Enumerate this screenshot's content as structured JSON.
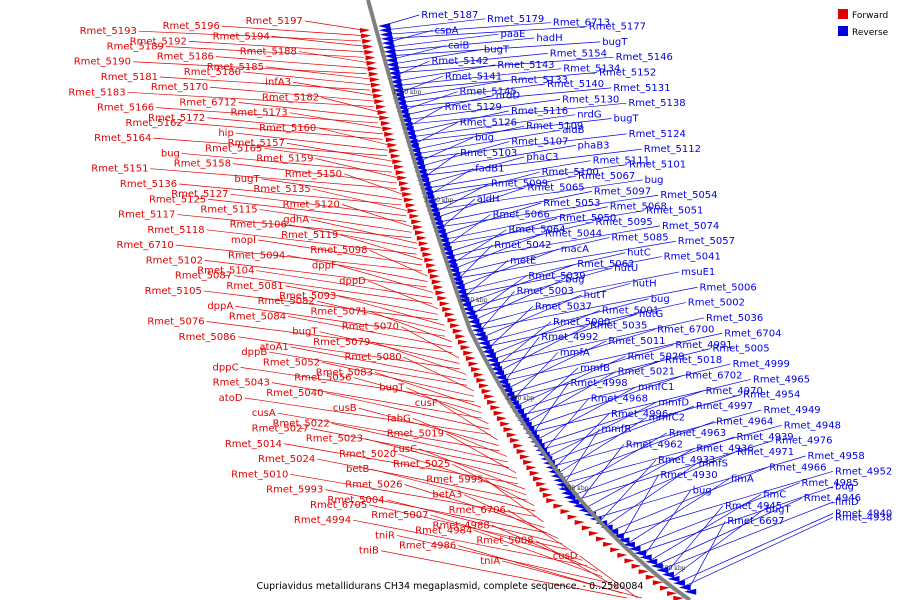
{
  "caption": "Cupriavidus metallidurans CH34 megaplasmid, complete sequence. - 0..2580084",
  "legend": {
    "forward": "Forward",
    "reverse": "Reverse"
  },
  "colors": {
    "forward": "#e00000",
    "reverse": "#0000e0",
    "backbone": "#808080",
    "link": "#cccccc"
  },
  "scale_labels": [
    "1850 kbp",
    "1800 kbp",
    "1750 kbp",
    "1700 kbp",
    "1650 kbp",
    "1600 kbp"
  ],
  "forward_genes": [
    "Rmet_5197",
    "Rmet_5196",
    "Rmet_5193",
    "Rmet_5194",
    "Rmet_5192",
    "Rmet_5189",
    "Rmet_5188",
    "Rmet_5186",
    "Rmet_5190",
    "Rmet_5185",
    "Rmet_5180",
    "Rmet_5181",
    "infA3",
    "Rmet_5170",
    "Rmet_5183",
    "Rmet_5182",
    "Rmet_6712",
    "Rmet_5166",
    "Rmet_5173",
    "Rmet_5172",
    "Rmet_5162",
    "Rmet_5160",
    "hip",
    "Rmet_5164",
    "Rmet_5157",
    "Rmet_5165",
    "bug",
    "Rmet_5159",
    "Rmet_5158",
    "Rmet_5151",
    "Rmet_5150",
    "bugT",
    "Rmet_5136",
    "Rmet_5135",
    "Rmet_5127",
    "Rmet_5125",
    "Rmet_5120",
    "Rmet_5115",
    "Rmet_5117",
    "gdhA",
    "Rmet_5106",
    "Rmet_5118",
    "Rmet_5119",
    "mopI",
    "Rmet_6710",
    "Rmet_5098",
    "Rmet_5094",
    "Rmet_5102",
    "dppF",
    "Rmet_5104",
    "Rmet_5087",
    "dppD",
    "Rmet_5081",
    "Rmet_5105",
    "Rmet_5093",
    "Rmet_5082",
    "dppA",
    "Rmet_5071",
    "Rmet_5084",
    "Rmet_5076",
    "Rmet_5070",
    "bugT",
    "Rmet_5086",
    "Rmet_5079",
    "atoA1",
    "dppB",
    "Rmet_5080",
    "Rmet_5052",
    "dppC",
    "Rmet_5083",
    "Rmet_5056",
    "Rmet_5043",
    "bugT",
    "Rmet_5040",
    "atoD",
    "cusF",
    "cusB",
    "cusA",
    "fabG",
    "Rmet_5022",
    "Rmet_5027",
    "Rmet_5019",
    "Rmet_5023",
    "Rmet_5014",
    "cusC",
    "Rmet_5020",
    "Rmet_5024",
    "Rmet_5025",
    "betB",
    "Rmet_5010",
    "Rmet_5995",
    "Rmet_5026",
    "Rmet_5993",
    "betA3",
    "Rmet_5004",
    "Rmet_6705",
    "Rmet_6706",
    "Rmet_5007",
    "Rmet_4994",
    "Rmet_4988",
    "Rmet_4984",
    "tniR",
    "Rmet_5008",
    "Rmet_4986",
    "tniB",
    "cusD",
    "tniA"
  ],
  "reverse_genes": [
    "Rmet_5187",
    "Rmet_5179",
    "Rmet_6713",
    "Rmet_5177",
    "cspA",
    "paaE",
    "hadH",
    "bugT",
    "caiB",
    "bugT",
    "Rmet_5154",
    "Rmet_5146",
    "Rmet_5142",
    "Rmet_5143",
    "Rmet_5134",
    "Rmet_5152",
    "Rmet_5141",
    "Rmet_5133",
    "Rmet_5140",
    "Rmet_5131",
    "Rmet_5145",
    "nrdD",
    "Rmet_5130",
    "Rmet_5138",
    "Rmet_5129",
    "Rmet_5116",
    "nrdG",
    "bugT",
    "Rmet_5126",
    "Rmet_5109",
    "aldB",
    "Rmet_5124",
    "bug",
    "Rmet_5107",
    "phaB3",
    "Rmet_5112",
    "Rmet_5103",
    "phaC3",
    "Rmet_5111",
    "Rmet_5101",
    "fadB1",
    "Rmet_5100",
    "Rmet_5067",
    "bug",
    "Rmet_5099",
    "Rmet_5065",
    "Rmet_5097",
    "Rmet_5054",
    "aldH",
    "Rmet_5053",
    "Rmet_5068",
    "Rmet_5051",
    "Rmet_5066",
    "Rmet_5050",
    "Rmet_5095",
    "Rmet_5074",
    "Rmet_5064",
    "Rmet_5044",
    "Rmet_5085",
    "Rmet_5057",
    "Rmet_5042",
    "macA",
    "hutC",
    "Rmet_5041",
    "metE",
    "Rmet_5062",
    "hutU",
    "msuE1",
    "Rmet_5039",
    "bug",
    "hutH",
    "Rmet_5006",
    "Rmet_5003",
    "hutT",
    "bug",
    "Rmet_5002",
    "Rmet_5037",
    "Rmet_5001",
    "hutG",
    "Rmet_5036",
    "Rmet_5000",
    "Rmet_5035",
    "Rmet_6700",
    "Rmet_6704",
    "Rmet_4992",
    "Rmet_5011",
    "Rmet_4991",
    "Rmet_5005",
    "mmfA",
    "Rmet_5029",
    "Rmet_5018",
    "Rmet_4999",
    "mmfB",
    "Rmet_5021",
    "Rmet_6702",
    "Rmet_4965",
    "Rmet_4998",
    "mmfC1",
    "Rmet_4970",
    "Rmet_4954",
    "Rmet_4968",
    "mmfD",
    "Rmet_4997",
    "Rmet_4949",
    "Rmet_4996",
    "mmfC2",
    "Rmet_4964",
    "Rmet_4948",
    "mmfR",
    "Rmet_4963",
    "Rmet_4939",
    "Rmet_4976",
    "Rmet_4962",
    "Rmet_4936",
    "Rmet_4971",
    "Rmet_4958",
    "Rmet_4933",
    "mmfS",
    "Rmet_4966",
    "Rmet_4952",
    "Rmet_4930",
    "fimA",
    "Rmet_4985",
    "bug",
    "bug",
    "fimC",
    "Rmet_4946",
    "fimD",
    "Rmet_4945",
    "bugT",
    "Rmet_4940",
    "Rmet_4938",
    "Rmet_6697"
  ]
}
